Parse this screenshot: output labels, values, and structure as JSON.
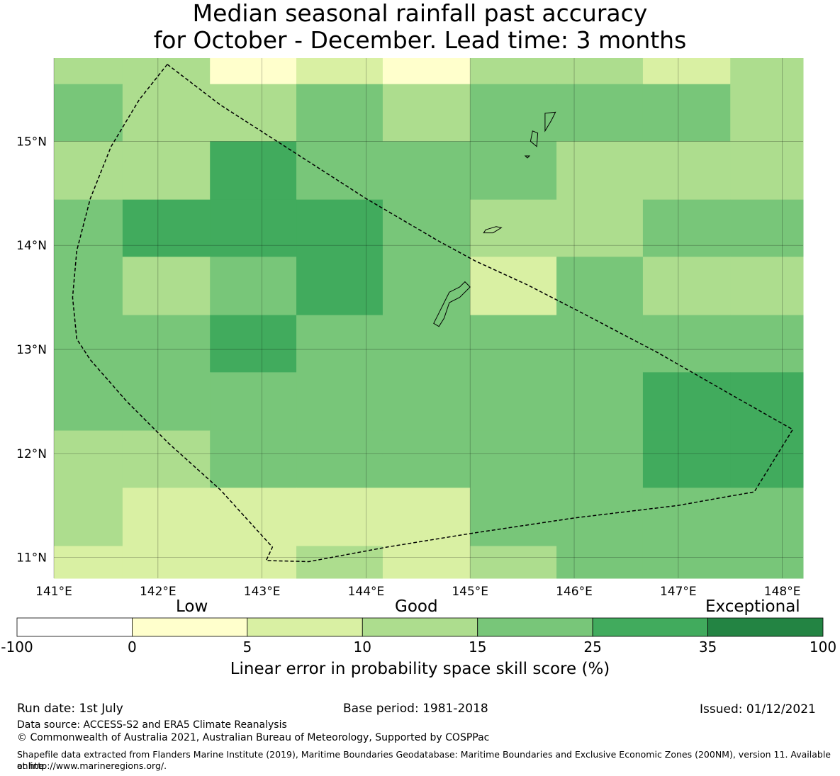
{
  "title_line1": "Median seasonal rainfall past accuracy",
  "title_line2": "for October - December. Lead time: 3 months",
  "map": {
    "lon_range": [
      141.0,
      148.2
    ],
    "lat_range": [
      10.8,
      15.8
    ],
    "x_ticks": [
      {
        "lon": 141,
        "label": "141°E"
      },
      {
        "lon": 142,
        "label": "142°E"
      },
      {
        "lon": 143,
        "label": "143°E"
      },
      {
        "lon": 144,
        "label": "144°E"
      },
      {
        "lon": 145,
        "label": "145°E"
      },
      {
        "lon": 146,
        "label": "146°E"
      },
      {
        "lon": 147,
        "label": "147°E"
      },
      {
        "lon": 148,
        "label": "148°E"
      }
    ],
    "y_ticks": [
      {
        "lat": 15,
        "label": "15°N"
      },
      {
        "lat": 14,
        "label": "14°N"
      },
      {
        "lat": 13,
        "label": "13°N"
      },
      {
        "lat": 12,
        "label": "12°N"
      },
      {
        "lat": 11,
        "label": "11°N"
      }
    ],
    "grid": true,
    "grid_columns_lon": [
      141.0,
      141.66,
      142.5,
      143.33,
      144.16,
      145.0,
      145.83,
      146.66,
      147.5,
      148.2
    ],
    "grid_rows_lat_top_to_bottom": [
      15.8,
      15.55,
      15.0,
      14.44,
      13.89,
      13.33,
      12.78,
      12.22,
      11.67,
      11.11,
      10.8
    ],
    "cell_class_rows_top_to_bottom": [
      [
        3,
        3,
        1,
        2,
        1,
        3,
        3,
        2,
        3
      ],
      [
        4,
        3,
        3,
        4,
        3,
        4,
        4,
        4,
        3
      ],
      [
        3,
        3,
        5,
        4,
        4,
        4,
        3,
        3,
        3
      ],
      [
        4,
        5,
        5,
        5,
        4,
        3,
        3,
        4,
        4
      ],
      [
        4,
        3,
        4,
        5,
        4,
        2,
        4,
        3,
        3
      ],
      [
        4,
        4,
        5,
        4,
        4,
        4,
        4,
        4,
        4
      ],
      [
        4,
        4,
        4,
        4,
        4,
        4,
        4,
        5,
        5
      ],
      [
        3,
        3,
        4,
        4,
        4,
        4,
        4,
        5,
        5
      ],
      [
        3,
        2,
        2,
        2,
        2,
        4,
        4,
        4,
        4
      ],
      [
        2,
        2,
        2,
        3,
        2,
        3,
        4,
        4,
        4
      ]
    ],
    "eez_boundary": [
      [
        142.09,
        15.74
      ],
      [
        141.82,
        15.4
      ],
      [
        141.55,
        14.95
      ],
      [
        141.35,
        14.45
      ],
      [
        141.22,
        13.95
      ],
      [
        141.18,
        13.5
      ],
      [
        141.22,
        13.1
      ],
      [
        141.35,
        12.9
      ],
      [
        141.7,
        12.5
      ],
      [
        142.1,
        12.1
      ],
      [
        142.6,
        11.65
      ],
      [
        143.1,
        11.1
      ],
      [
        143.04,
        10.97
      ],
      [
        143.45,
        10.96
      ],
      [
        144.2,
        11.1
      ],
      [
        145.0,
        11.23
      ],
      [
        146.0,
        11.38
      ],
      [
        147.0,
        11.5
      ],
      [
        147.5,
        11.59
      ],
      [
        147.73,
        11.63
      ],
      [
        148.1,
        12.23
      ],
      [
        147.5,
        12.57
      ],
      [
        146.8,
        12.97
      ],
      [
        146.0,
        13.39
      ],
      [
        145.55,
        13.62
      ],
      [
        145.05,
        13.85
      ],
      [
        144.7,
        14.04
      ],
      [
        144.0,
        14.45
      ],
      [
        143.3,
        14.9
      ],
      [
        142.6,
        15.35
      ],
      [
        142.09,
        15.74
      ]
    ],
    "islands": [
      {
        "name": "Guam",
        "outline": [
          [
            144.95,
            13.65
          ],
          [
            144.9,
            13.6
          ],
          [
            144.8,
            13.55
          ],
          [
            144.75,
            13.45
          ],
          [
            144.7,
            13.35
          ],
          [
            144.65,
            13.25
          ],
          [
            144.7,
            13.22
          ],
          [
            144.75,
            13.3
          ],
          [
            144.8,
            13.45
          ],
          [
            144.9,
            13.5
          ],
          [
            145.0,
            13.6
          ],
          [
            144.95,
            13.65
          ]
        ]
      },
      {
        "name": "Rota",
        "outline": [
          [
            145.15,
            14.15
          ],
          [
            145.25,
            14.18
          ],
          [
            145.3,
            14.17
          ],
          [
            145.22,
            14.12
          ],
          [
            145.13,
            14.12
          ],
          [
            145.15,
            14.15
          ]
        ]
      },
      {
        "name": "Saipan",
        "outline": [
          [
            145.72,
            15.27
          ],
          [
            145.82,
            15.28
          ],
          [
            145.78,
            15.2
          ],
          [
            145.72,
            15.1
          ],
          [
            145.72,
            15.27
          ]
        ]
      },
      {
        "name": "Tinian",
        "outline": [
          [
            145.6,
            15.1
          ],
          [
            145.65,
            15.08
          ],
          [
            145.64,
            14.95
          ],
          [
            145.58,
            15.0
          ],
          [
            145.6,
            15.1
          ]
        ]
      },
      {
        "name": "Aguijan",
        "outline": [
          [
            145.53,
            14.86
          ],
          [
            145.57,
            14.86
          ],
          [
            145.55,
            14.84
          ],
          [
            145.53,
            14.86
          ]
        ]
      }
    ]
  },
  "colorbar": {
    "category_labels": [
      "Low",
      "Good",
      "Exceptional"
    ],
    "bins": [
      {
        "from": "-100",
        "to": "0",
        "color": "#ffffff"
      },
      {
        "from": "0",
        "to": "5",
        "color": "#ffffcc"
      },
      {
        "from": "5",
        "to": "10",
        "color": "#d9f0a3"
      },
      {
        "from": "10",
        "to": "15",
        "color": "#addd8e"
      },
      {
        "from": "15",
        "to": "25",
        "color": "#78c679"
      },
      {
        "from": "25",
        "to": "35",
        "color": "#41ab5d"
      },
      {
        "from": "35",
        "to": "100",
        "color": "#238443"
      }
    ],
    "tick_labels": [
      "-100",
      "0",
      "5",
      "10",
      "15",
      "25",
      "35",
      "100"
    ],
    "title": "Linear error in probability space skill score (%)"
  },
  "footer": {
    "run_date": "Run date: 1st July",
    "base_period": "Base period: 1981-2018",
    "issued": "Issued: 01/12/2021",
    "data_source": "Data source: ACCESS-S2 and ERA5 Climate Reanalysis",
    "copyright": "© Commonwealth of Australia 2021, Australian Bureau of Meteorology, Supported by COSPPac",
    "shapefile_line1": "Shapefile data extracted from Flanders Marine Institute (2019), Maritime Boundaries Geodatabase: Maritime Boundaries and Exclusive Economic Zones (200NM), version 11. Available online",
    "shapefile_line2": "at http://www.marineregions.org/."
  }
}
